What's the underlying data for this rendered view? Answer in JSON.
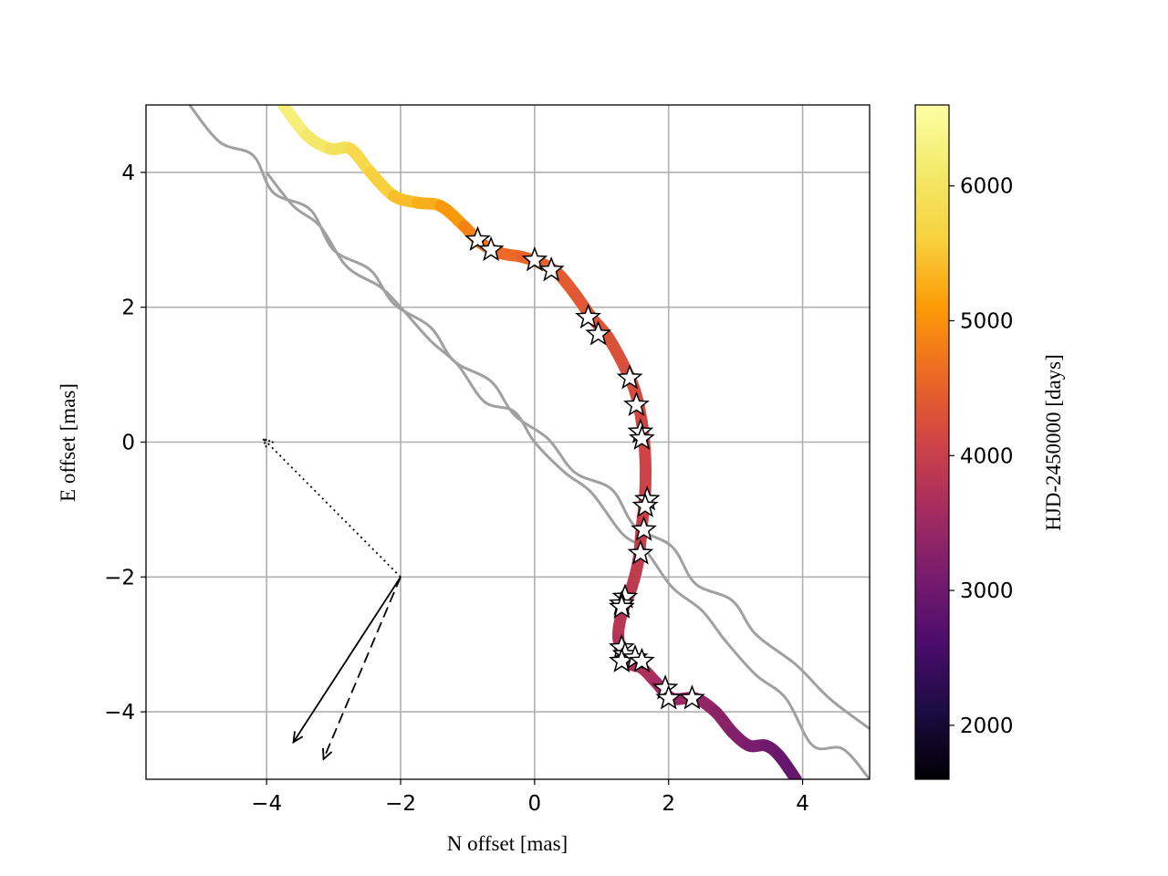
{
  "chart_data": {
    "type": "line",
    "title": "",
    "xlabel": "N offset [mas]",
    "ylabel": "E offset [mas]",
    "xlim": [
      -5.8,
      5.0
    ],
    "ylim": [
      -5.0,
      5.0
    ],
    "xticks": [
      -4,
      -2,
      0,
      2,
      4
    ],
    "yticks": [
      -4,
      -2,
      0,
      2,
      4
    ],
    "xtick_labels": [
      "−4",
      "−2",
      "0",
      "2",
      "4"
    ],
    "ytick_labels": [
      "−4",
      "−2",
      "0",
      "2",
      "4"
    ],
    "grid": true,
    "colorbar": {
      "label": "HJD-2450000 [days]",
      "colormap": "inferno",
      "range": [
        1600,
        6600
      ],
      "ticks": [
        2000,
        3000,
        4000,
        5000,
        6000
      ],
      "tick_labels": [
        "2000",
        "3000",
        "4000",
        "5000",
        "6000"
      ]
    },
    "gray_tracks": [
      {
        "color": "#a0a0a0",
        "points": [
          [
            -5.15,
            5.0
          ],
          [
            -4.7,
            4.45
          ],
          [
            -4.2,
            4.25
          ],
          [
            -3.9,
            3.7
          ],
          [
            -3.35,
            3.45
          ],
          [
            -3.0,
            2.85
          ],
          [
            -2.45,
            2.55
          ],
          [
            -2.1,
            2.05
          ],
          [
            -1.55,
            1.7
          ],
          [
            -1.2,
            1.2
          ],
          [
            -0.65,
            0.9
          ],
          [
            -0.3,
            0.4
          ],
          [
            0.2,
            0.05
          ],
          [
            0.6,
            -0.45
          ],
          [
            1.15,
            -0.7
          ],
          [
            1.5,
            -1.25
          ],
          [
            2.05,
            -1.55
          ],
          [
            2.4,
            -2.1
          ],
          [
            2.95,
            -2.35
          ],
          [
            3.3,
            -2.85
          ],
          [
            3.9,
            -3.3
          ],
          [
            4.4,
            -3.8
          ],
          [
            5.0,
            -4.25
          ]
        ]
      },
      {
        "color": "#a0a0a0",
        "points": [
          [
            -4.0,
            4.0
          ],
          [
            -3.6,
            3.5
          ],
          [
            -3.2,
            3.2
          ],
          [
            -2.8,
            2.6
          ],
          [
            -2.3,
            2.3
          ],
          [
            -2.0,
            2.0
          ],
          [
            -1.55,
            1.5
          ],
          [
            -1.15,
            1.15
          ],
          [
            -0.75,
            0.6
          ],
          [
            -0.3,
            0.45
          ],
          [
            0.0,
            0.0
          ],
          [
            0.45,
            -0.45
          ],
          [
            0.85,
            -0.75
          ],
          [
            1.3,
            -1.35
          ],
          [
            1.65,
            -1.6
          ],
          [
            2.05,
            -2.15
          ],
          [
            2.5,
            -2.5
          ],
          [
            2.85,
            -2.95
          ],
          [
            3.3,
            -3.45
          ],
          [
            3.75,
            -3.8
          ],
          [
            4.15,
            -4.5
          ],
          [
            4.6,
            -4.55
          ],
          [
            5.0,
            -5.0
          ]
        ]
      }
    ],
    "path": {
      "points": [
        [
          -3.75,
          5.0
        ],
        [
          -3.4,
          4.55
        ],
        [
          -3.05,
          4.35
        ],
        [
          -2.75,
          4.35
        ],
        [
          -2.45,
          4.0
        ],
        [
          -2.1,
          3.65
        ],
        [
          -1.75,
          3.55
        ],
        [
          -1.4,
          3.5
        ],
        [
          -1.05,
          3.2
        ],
        [
          -0.8,
          2.95
        ],
        [
          -0.5,
          2.8
        ],
        [
          -0.2,
          2.75
        ],
        [
          0.1,
          2.65
        ],
        [
          0.35,
          2.5
        ],
        [
          0.6,
          2.2
        ],
        [
          0.85,
          1.85
        ],
        [
          1.1,
          1.55
        ],
        [
          1.35,
          1.1
        ],
        [
          1.5,
          0.75
        ],
        [
          1.6,
          0.3
        ],
        [
          1.65,
          -0.2
        ],
        [
          1.65,
          -0.75
        ],
        [
          1.6,
          -1.25
        ],
        [
          1.55,
          -1.75
        ],
        [
          1.45,
          -2.15
        ],
        [
          1.3,
          -2.55
        ],
        [
          1.25,
          -2.9
        ],
        [
          1.35,
          -3.25
        ],
        [
          1.6,
          -3.35
        ],
        [
          1.8,
          -3.55
        ],
        [
          2.05,
          -3.8
        ],
        [
          2.4,
          -3.8
        ],
        [
          2.7,
          -4.0
        ],
        [
          2.95,
          -4.3
        ],
        [
          3.2,
          -4.5
        ],
        [
          3.45,
          -4.5
        ],
        [
          3.65,
          -4.65
        ],
        [
          3.9,
          -5.0
        ]
      ],
      "times": [
        6300,
        6150,
        6000,
        5850,
        5700,
        5500,
        5350,
        5200,
        4950,
        4750,
        4650,
        4550,
        4500,
        4450,
        4400,
        4350,
        4300,
        4250,
        4200,
        4150,
        4100,
        4050,
        4000,
        3950,
        3900,
        3850,
        3800,
        3750,
        3700,
        3650,
        3550,
        3450,
        3350,
        3250,
        3150,
        3050,
        2950,
        2850
      ]
    },
    "observations": [
      [
        -0.85,
        3.0
      ],
      [
        -0.65,
        2.85
      ],
      [
        0.0,
        2.7
      ],
      [
        0.25,
        2.55
      ],
      [
        0.8,
        1.85
      ],
      [
        0.95,
        1.6
      ],
      [
        1.42,
        0.95
      ],
      [
        1.52,
        0.55
      ],
      [
        1.58,
        0.15
      ],
      [
        1.6,
        0.05
      ],
      [
        1.68,
        -0.85
      ],
      [
        1.65,
        -0.95
      ],
      [
        1.63,
        -1.3
      ],
      [
        1.58,
        -1.65
      ],
      [
        1.35,
        -2.3
      ],
      [
        1.3,
        -2.4
      ],
      [
        1.3,
        -2.45
      ],
      [
        1.3,
        -3.05
      ],
      [
        1.35,
        -3.15
      ],
      [
        1.3,
        -3.25
      ],
      [
        1.5,
        -3.2
      ],
      [
        1.6,
        -3.25
      ],
      [
        1.95,
        -3.65
      ],
      [
        2.0,
        -3.8
      ],
      [
        2.35,
        -3.8
      ]
    ],
    "arrows": [
      {
        "style": "dotted",
        "from": [
          -2.0,
          -2.0
        ],
        "to": [
          -4.05,
          0.05
        ]
      },
      {
        "style": "solid",
        "from": [
          -2.0,
          -2.0
        ],
        "to": [
          -3.6,
          -4.45
        ]
      },
      {
        "style": "dashed",
        "from": [
          -2.0,
          -2.0
        ],
        "to": [
          -3.15,
          -4.7
        ]
      }
    ]
  }
}
